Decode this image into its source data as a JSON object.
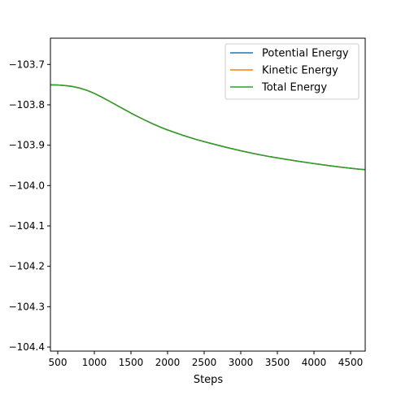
{
  "chart_data": {
    "type": "line",
    "xlabel": "Steps",
    "ylabel": "",
    "title": "",
    "xlim": [
      400,
      4700
    ],
    "ylim": [
      -104.41,
      -103.635
    ],
    "xticks": [
      500,
      1000,
      1500,
      2000,
      2500,
      3000,
      3500,
      4000,
      4500
    ],
    "xtick_labels": [
      "500",
      "1000",
      "1500",
      "2000",
      "2500",
      "3000",
      "3500",
      "4000",
      "4500"
    ],
    "yticks": [
      -103.7,
      -103.8,
      -103.9,
      -104.0,
      -104.1,
      -104.2,
      -104.3,
      -104.4
    ],
    "ytick_labels": [
      "−103.7",
      "−103.8",
      "−103.9",
      "−104.0",
      "−104.1",
      "−104.2",
      "−104.3",
      "−104.4"
    ],
    "grid": false,
    "legend_position": "top-right",
    "series": [
      {
        "name": "Potential Energy",
        "color": "#1f77b4",
        "x": [
          400,
          500,
          600,
          700,
          800,
          900,
          1000,
          1100,
          1200,
          1300,
          1400,
          1500,
          1600,
          1700,
          1800,
          1900,
          2000,
          2200,
          2400,
          2600,
          2800,
          3000,
          3200,
          3400,
          3600,
          3800,
          4000,
          4200,
          4400,
          4600,
          4700
        ],
        "y": [
          -103.7505,
          -103.751,
          -103.7522,
          -103.7545,
          -103.7585,
          -103.7642,
          -103.7718,
          -103.7808,
          -103.7905,
          -103.8005,
          -103.8105,
          -103.8205,
          -103.8298,
          -103.8388,
          -103.8472,
          -103.855,
          -103.8622,
          -103.875,
          -103.8862,
          -103.896,
          -103.9052,
          -103.9138,
          -103.9215,
          -103.9285,
          -103.9345,
          -103.9402,
          -103.9455,
          -103.9505,
          -103.955,
          -103.959,
          -103.9605
        ]
      },
      {
        "name": "Kinetic Energy",
        "color": "#ff7f0e",
        "x": [
          400,
          500,
          600,
          700,
          800,
          900,
          1000,
          1100,
          1200,
          1300,
          1400,
          1500,
          1600,
          1700,
          1800,
          1900,
          2000,
          2200,
          2400,
          2600,
          2800,
          3000,
          3200,
          3400,
          3600,
          3800,
          4000,
          4200,
          4400,
          4600,
          4700
        ],
        "y": [
          -103.7505,
          -103.751,
          -103.7522,
          -103.7545,
          -103.7585,
          -103.7642,
          -103.7718,
          -103.7808,
          -103.7905,
          -103.8005,
          -103.8105,
          -103.8205,
          -103.8298,
          -103.8388,
          -103.8472,
          -103.855,
          -103.8622,
          -103.875,
          -103.8862,
          -103.896,
          -103.9052,
          -103.9138,
          -103.9215,
          -103.9285,
          -103.9345,
          -103.9402,
          -103.9455,
          -103.9505,
          -103.955,
          -103.959,
          -103.9605
        ]
      },
      {
        "name": "Total Energy",
        "color": "#2ca02c",
        "x": [
          400,
          500,
          600,
          700,
          800,
          900,
          1000,
          1100,
          1200,
          1300,
          1400,
          1500,
          1600,
          1700,
          1800,
          1900,
          2000,
          2200,
          2400,
          2600,
          2800,
          3000,
          3200,
          3400,
          3600,
          3800,
          4000,
          4200,
          4400,
          4600,
          4700
        ],
        "y": [
          -103.7505,
          -103.751,
          -103.7522,
          -103.7545,
          -103.7585,
          -103.7642,
          -103.7718,
          -103.7808,
          -103.7905,
          -103.8005,
          -103.8105,
          -103.8205,
          -103.8298,
          -103.8388,
          -103.8472,
          -103.855,
          -103.8622,
          -103.875,
          -103.8862,
          -103.896,
          -103.9052,
          -103.9138,
          -103.9215,
          -103.9285,
          -103.9345,
          -103.9402,
          -103.9455,
          -103.9505,
          -103.955,
          -103.959,
          -103.9605
        ]
      }
    ]
  }
}
